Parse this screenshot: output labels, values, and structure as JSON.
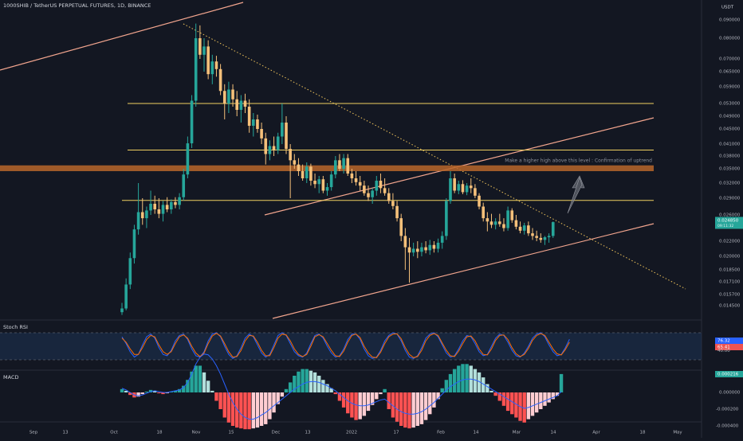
{
  "header": {
    "symbol_title": "1000SHIB / TetherUS PERPETUAL FUTURES, 1D, BINANCE",
    "currency": "USDT"
  },
  "chart_data": [
    {
      "type": "candlestick",
      "name": "price",
      "y_ticks": [
        "0.090000",
        "0.080000",
        "0.070000",
        "0.065000",
        "0.059000",
        "0.053000",
        "0.049000",
        "0.045000",
        "0.041000",
        "0.038000",
        "0.035000",
        "0.032000",
        "0.029000",
        "0.026000",
        "0.024850",
        "0.022000",
        "0.020000",
        "0.018500",
        "0.017100",
        "0.015700",
        "0.014500"
      ],
      "last_price": "0.024850",
      "last_price_sub": "09:11:32",
      "horizontal_levels": [
        0.053,
        0.0395,
        0.0286
      ],
      "resistance_zone": [
        0.0345,
        0.0358
      ],
      "annotation": "Make a higher high above this level : Confirmation of uptrend",
      "x_ticks": [
        "Sep",
        "13",
        "Oct",
        "18",
        "Nov",
        "15",
        "Dec",
        "13",
        "2022",
        "17",
        "Feb",
        "14",
        "Mar",
        "14",
        "Apr",
        "18",
        "May"
      ],
      "candles": [
        {
          "o": 0.0138,
          "h": 0.0148,
          "l": 0.0135,
          "c": 0.0142
        },
        {
          "o": 0.0142,
          "h": 0.0175,
          "l": 0.014,
          "c": 0.0168
        },
        {
          "o": 0.0168,
          "h": 0.0205,
          "l": 0.0163,
          "c": 0.0198
        },
        {
          "o": 0.0198,
          "h": 0.0245,
          "l": 0.0192,
          "c": 0.0238
        },
        {
          "o": 0.0238,
          "h": 0.032,
          "l": 0.023,
          "c": 0.0265
        },
        {
          "o": 0.0265,
          "h": 0.029,
          "l": 0.0245,
          "c": 0.0255
        },
        {
          "o": 0.0255,
          "h": 0.0275,
          "l": 0.024,
          "c": 0.0268
        },
        {
          "o": 0.0268,
          "h": 0.0305,
          "l": 0.026,
          "c": 0.028
        },
        {
          "o": 0.028,
          "h": 0.0295,
          "l": 0.0262,
          "c": 0.027
        },
        {
          "o": 0.027,
          "h": 0.029,
          "l": 0.0255,
          "c": 0.0262
        },
        {
          "o": 0.0262,
          "h": 0.0285,
          "l": 0.025,
          "c": 0.0278
        },
        {
          "o": 0.0278,
          "h": 0.0292,
          "l": 0.0265,
          "c": 0.027
        },
        {
          "o": 0.027,
          "h": 0.0288,
          "l": 0.0262,
          "c": 0.0283
        },
        {
          "o": 0.0283,
          "h": 0.0292,
          "l": 0.0272,
          "c": 0.0278
        },
        {
          "o": 0.0278,
          "h": 0.03,
          "l": 0.027,
          "c": 0.0292
        },
        {
          "o": 0.0292,
          "h": 0.035,
          "l": 0.0286,
          "c": 0.0338
        },
        {
          "o": 0.0338,
          "h": 0.043,
          "l": 0.033,
          "c": 0.0412
        },
        {
          "o": 0.0412,
          "h": 0.056,
          "l": 0.04,
          "c": 0.054
        },
        {
          "o": 0.054,
          "h": 0.088,
          "l": 0.052,
          "c": 0.08
        },
        {
          "o": 0.08,
          "h": 0.087,
          "l": 0.07,
          "c": 0.072
        },
        {
          "o": 0.072,
          "h": 0.08,
          "l": 0.065,
          "c": 0.076
        },
        {
          "o": 0.076,
          "h": 0.079,
          "l": 0.062,
          "c": 0.064
        },
        {
          "o": 0.064,
          "h": 0.072,
          "l": 0.06,
          "c": 0.069
        },
        {
          "o": 0.069,
          "h": 0.0715,
          "l": 0.063,
          "c": 0.066
        },
        {
          "o": 0.066,
          "h": 0.068,
          "l": 0.056,
          "c": 0.0575
        },
        {
          "o": 0.0575,
          "h": 0.06,
          "l": 0.048,
          "c": 0.053
        },
        {
          "o": 0.053,
          "h": 0.061,
          "l": 0.05,
          "c": 0.058
        },
        {
          "o": 0.058,
          "h": 0.06,
          "l": 0.052,
          "c": 0.0545
        },
        {
          "o": 0.0545,
          "h": 0.0575,
          "l": 0.049,
          "c": 0.051
        },
        {
          "o": 0.051,
          "h": 0.056,
          "l": 0.047,
          "c": 0.054
        },
        {
          "o": 0.054,
          "h": 0.0565,
          "l": 0.05,
          "c": 0.052
        },
        {
          "o": 0.052,
          "h": 0.0545,
          "l": 0.044,
          "c": 0.046
        },
        {
          "o": 0.046,
          "h": 0.05,
          "l": 0.043,
          "c": 0.048
        },
        {
          "o": 0.048,
          "h": 0.0495,
          "l": 0.044,
          "c": 0.045
        },
        {
          "o": 0.045,
          "h": 0.047,
          "l": 0.041,
          "c": 0.0425
        },
        {
          "o": 0.0425,
          "h": 0.044,
          "l": 0.036,
          "c": 0.0385
        },
        {
          "o": 0.0385,
          "h": 0.042,
          "l": 0.037,
          "c": 0.0405
        },
        {
          "o": 0.0405,
          "h": 0.043,
          "l": 0.038,
          "c": 0.0395
        },
        {
          "o": 0.0395,
          "h": 0.044,
          "l": 0.0385,
          "c": 0.043
        },
        {
          "o": 0.043,
          "h": 0.053,
          "l": 0.041,
          "c": 0.047
        },
        {
          "o": 0.047,
          "h": 0.049,
          "l": 0.0385,
          "c": 0.0398
        },
        {
          "o": 0.0398,
          "h": 0.041,
          "l": 0.029,
          "c": 0.037
        },
        {
          "o": 0.037,
          "h": 0.0385,
          "l": 0.035,
          "c": 0.036
        },
        {
          "o": 0.036,
          "h": 0.0375,
          "l": 0.0335,
          "c": 0.0345
        },
        {
          "o": 0.0345,
          "h": 0.036,
          "l": 0.0325,
          "c": 0.033
        },
        {
          "o": 0.033,
          "h": 0.0365,
          "l": 0.032,
          "c": 0.0355
        },
        {
          "o": 0.0355,
          "h": 0.0362,
          "l": 0.0315,
          "c": 0.0325
        },
        {
          "o": 0.0325,
          "h": 0.034,
          "l": 0.031,
          "c": 0.0318
        },
        {
          "o": 0.0318,
          "h": 0.0335,
          "l": 0.03,
          "c": 0.0328
        },
        {
          "o": 0.0328,
          "h": 0.0335,
          "l": 0.03,
          "c": 0.0305
        },
        {
          "o": 0.0305,
          "h": 0.032,
          "l": 0.0295,
          "c": 0.0312
        },
        {
          "o": 0.0312,
          "h": 0.0345,
          "l": 0.0305,
          "c": 0.0338
        },
        {
          "o": 0.0338,
          "h": 0.038,
          "l": 0.033,
          "c": 0.037
        },
        {
          "o": 0.037,
          "h": 0.0385,
          "l": 0.0345,
          "c": 0.035
        },
        {
          "o": 0.035,
          "h": 0.0385,
          "l": 0.034,
          "c": 0.0375
        },
        {
          "o": 0.0375,
          "h": 0.0385,
          "l": 0.0335,
          "c": 0.034
        },
        {
          "o": 0.034,
          "h": 0.035,
          "l": 0.032,
          "c": 0.033
        },
        {
          "o": 0.033,
          "h": 0.0345,
          "l": 0.0315,
          "c": 0.0322
        },
        {
          "o": 0.0322,
          "h": 0.0335,
          "l": 0.0305,
          "c": 0.0315
        },
        {
          "o": 0.0315,
          "h": 0.0325,
          "l": 0.0295,
          "c": 0.03
        },
        {
          "o": 0.03,
          "h": 0.0315,
          "l": 0.0285,
          "c": 0.0292
        },
        {
          "o": 0.0292,
          "h": 0.031,
          "l": 0.028,
          "c": 0.0305
        },
        {
          "o": 0.0305,
          "h": 0.0335,
          "l": 0.0295,
          "c": 0.0325
        },
        {
          "o": 0.0325,
          "h": 0.034,
          "l": 0.03,
          "c": 0.031
        },
        {
          "o": 0.031,
          "h": 0.033,
          "l": 0.0295,
          "c": 0.03
        },
        {
          "o": 0.03,
          "h": 0.031,
          "l": 0.028,
          "c": 0.0285
        },
        {
          "o": 0.0285,
          "h": 0.03,
          "l": 0.027,
          "c": 0.0276
        },
        {
          "o": 0.0276,
          "h": 0.0285,
          "l": 0.025,
          "c": 0.0255
        },
        {
          "o": 0.0255,
          "h": 0.0262,
          "l": 0.022,
          "c": 0.0228
        },
        {
          "o": 0.0228,
          "h": 0.024,
          "l": 0.0185,
          "c": 0.0212
        },
        {
          "o": 0.0212,
          "h": 0.0225,
          "l": 0.017,
          "c": 0.0205
        },
        {
          "o": 0.0205,
          "h": 0.0218,
          "l": 0.02,
          "c": 0.021
        },
        {
          "o": 0.021,
          "h": 0.022,
          "l": 0.0198,
          "c": 0.0206
        },
        {
          "o": 0.0206,
          "h": 0.0218,
          "l": 0.02,
          "c": 0.0212
        },
        {
          "o": 0.0212,
          "h": 0.022,
          "l": 0.0204,
          "c": 0.0208
        },
        {
          "o": 0.0208,
          "h": 0.0222,
          "l": 0.0202,
          "c": 0.0215
        },
        {
          "o": 0.0215,
          "h": 0.022,
          "l": 0.0205,
          "c": 0.021
        },
        {
          "o": 0.021,
          "h": 0.0224,
          "l": 0.0205,
          "c": 0.0218
        },
        {
          "o": 0.0218,
          "h": 0.0235,
          "l": 0.021,
          "c": 0.0228
        },
        {
          "o": 0.0228,
          "h": 0.029,
          "l": 0.0222,
          "c": 0.0285
        },
        {
          "o": 0.0285,
          "h": 0.0345,
          "l": 0.028,
          "c": 0.033
        },
        {
          "o": 0.033,
          "h": 0.034,
          "l": 0.03,
          "c": 0.0305
        },
        {
          "o": 0.0305,
          "h": 0.0325,
          "l": 0.0298,
          "c": 0.0318
        },
        {
          "o": 0.0318,
          "h": 0.0326,
          "l": 0.0298,
          "c": 0.0302
        },
        {
          "o": 0.0302,
          "h": 0.032,
          "l": 0.0296,
          "c": 0.0315
        },
        {
          "o": 0.0315,
          "h": 0.033,
          "l": 0.03,
          "c": 0.031
        },
        {
          "o": 0.031,
          "h": 0.0318,
          "l": 0.029,
          "c": 0.0295
        },
        {
          "o": 0.0295,
          "h": 0.03,
          "l": 0.027,
          "c": 0.0275
        },
        {
          "o": 0.0275,
          "h": 0.0282,
          "l": 0.025,
          "c": 0.0255
        },
        {
          "o": 0.0255,
          "h": 0.0265,
          "l": 0.0235,
          "c": 0.025
        },
        {
          "o": 0.025,
          "h": 0.0262,
          "l": 0.024,
          "c": 0.0245
        },
        {
          "o": 0.0245,
          "h": 0.0255,
          "l": 0.0238,
          "c": 0.025
        },
        {
          "o": 0.025,
          "h": 0.0262,
          "l": 0.0242,
          "c": 0.0246
        },
        {
          "o": 0.0246,
          "h": 0.0255,
          "l": 0.0235,
          "c": 0.024
        },
        {
          "o": 0.024,
          "h": 0.0275,
          "l": 0.0236,
          "c": 0.0268
        },
        {
          "o": 0.0268,
          "h": 0.0272,
          "l": 0.0248,
          "c": 0.0252
        },
        {
          "o": 0.0252,
          "h": 0.026,
          "l": 0.0238,
          "c": 0.0242
        },
        {
          "o": 0.0242,
          "h": 0.025,
          "l": 0.0232,
          "c": 0.0236
        },
        {
          "o": 0.0236,
          "h": 0.0248,
          "l": 0.023,
          "c": 0.0244
        },
        {
          "o": 0.0244,
          "h": 0.025,
          "l": 0.0228,
          "c": 0.0232
        },
        {
          "o": 0.0232,
          "h": 0.024,
          "l": 0.0222,
          "c": 0.0228
        },
        {
          "o": 0.0228,
          "h": 0.0236,
          "l": 0.022,
          "c": 0.0225
        },
        {
          "o": 0.0225,
          "h": 0.0232,
          "l": 0.0218,
          "c": 0.0222
        },
        {
          "o": 0.0222,
          "h": 0.0228,
          "l": 0.0215,
          "c": 0.0226
        },
        {
          "o": 0.0226,
          "h": 0.0232,
          "l": 0.0218,
          "c": 0.0228
        },
        {
          "o": 0.0228,
          "h": 0.025,
          "l": 0.0225,
          "c": 0.0249
        }
      ]
    },
    {
      "type": "line",
      "name": "Stoch RSI",
      "label": "Stoch RSI",
      "values": [
        "76.32",
        "65.41"
      ],
      "y_ticks": [
        "40.00"
      ],
      "band": [
        20,
        80
      ],
      "k_values": [
        85,
        60,
        30,
        10,
        20,
        55,
        85,
        95,
        80,
        45,
        20,
        15,
        35,
        70,
        90,
        95,
        75,
        40,
        15,
        10,
        30,
        70,
        95,
        100,
        85,
        50,
        20,
        5,
        15,
        45,
        80,
        95,
        85,
        55,
        25,
        10,
        20,
        55,
        90,
        100,
        90,
        60,
        30,
        15,
        10,
        25,
        60,
        90,
        95,
        80,
        50,
        25,
        10,
        15,
        40,
        75,
        95,
        95,
        75,
        40,
        15,
        5,
        10,
        35,
        70,
        90,
        100,
        95,
        70,
        35,
        10,
        5,
        15,
        45,
        80,
        95,
        100,
        85,
        55,
        25,
        10,
        15,
        40,
        70,
        90,
        85,
        60,
        30,
        15,
        20,
        50,
        80,
        95,
        90,
        65,
        35,
        15,
        10,
        25,
        50,
        80,
        95,
        100,
        85,
        55,
        30,
        15,
        20,
        45,
        76
      ],
      "d_values": [
        80,
        65,
        40,
        20,
        20,
        45,
        75,
        90,
        85,
        55,
        30,
        20,
        30,
        60,
        85,
        92,
        80,
        50,
        25,
        12,
        25,
        60,
        88,
        98,
        88,
        60,
        30,
        10,
        12,
        35,
        70,
        90,
        88,
        65,
        35,
        15,
        15,
        45,
        80,
        95,
        92,
        70,
        40,
        20,
        12,
        20,
        50,
        85,
        93,
        85,
        60,
        35,
        15,
        12,
        32,
        65,
        90,
        95,
        82,
        50,
        25,
        10,
        8,
        28,
        60,
        85,
        95,
        96,
        78,
        45,
        20,
        8,
        12,
        35,
        70,
        90,
        97,
        90,
        62,
        35,
        15,
        12,
        32,
        60,
        85,
        88,
        70,
        40,
        20,
        18,
        40,
        72,
        90,
        92,
        75,
        45,
        22,
        12,
        20,
        42,
        72,
        90,
        97,
        90,
        65,
        40,
        22,
        18,
        38,
        65
      ]
    },
    {
      "type": "bar",
      "name": "MACD",
      "label": "MACD",
      "values": [
        "0.000216"
      ],
      "y_ticks": [
        "0.000000",
        "-0.000200",
        "-0.000400"
      ],
      "histogram": [
        4e-05,
        2e-05,
        -3e-05,
        -6e-05,
        -5e-05,
        -2e-05,
        1e-05,
        3e-05,
        2e-05,
        -1e-05,
        -2e-05,
        -1e-05,
        1e-05,
        2e-05,
        4e-05,
        8e-05,
        0.00015,
        0.00025,
        0.00032,
        0.00032,
        0.00024,
        0.00014,
        2e-05,
        -0.0001,
        -0.0002,
        -0.0003,
        -0.00036,
        -0.0004,
        -0.00042,
        -0.00043,
        -0.00044,
        -0.00044,
        -0.00043,
        -0.00042,
        -0.0004,
        -0.00038,
        -0.00032,
        -0.00024,
        -0.00014,
        -5e-05,
        4e-05,
        0.00012,
        0.0002,
        0.00025,
        0.00028,
        0.00028,
        0.00026,
        0.00024,
        0.0002,
        0.00015,
        0.0001,
        5e-05,
        -2e-05,
        -0.0001,
        -0.00018,
        -0.00025,
        -0.0003,
        -0.00033,
        -0.00032,
        -0.00028,
        -0.00022,
        -0.00015,
        -8e-05,
        -2e-05,
        4e-05,
        -0.0002,
        -0.0003,
        -0.00035,
        -0.0004,
        -0.00042,
        -0.00043,
        -0.00042,
        -0.0004,
        -0.00038,
        -0.00033,
        -0.00026,
        -0.00018,
        -8e-05,
        5e-05,
        0.00015,
        0.00022,
        0.00028,
        0.00032,
        0.00034,
        0.00034,
        0.00032,
        0.00028,
        0.00024,
        0.00018,
        0.0001,
        2e-05,
        -4e-05,
        -0.0001,
        -0.00016,
        -0.00022,
        -0.00026,
        -0.0003,
        -0.00034,
        -0.00036,
        -0.00032,
        -0.00028,
        -0.00024,
        -0.0002,
        -0.00016,
        -0.00012,
        -8e-05,
        -4e-05,
        0.00022
      ],
      "macd_line": [
        5e-05,
        3e-05,
        0.0,
        -3e-05,
        -4e-05,
        -3e-05,
        -1e-05,
        1e-05,
        2e-05,
        1e-05,
        0.0,
        0.0,
        1e-05,
        2e-05,
        3e-05,
        6e-05,
        0.00012,
        0.00022,
        0.00034,
        0.00042,
        0.00046,
        0.00045,
        0.0004,
        0.00032,
        0.00022,
        0.0001,
        -2e-05,
        -0.00012,
        -0.0002,
        -0.00026,
        -0.0003,
        -0.00032,
        -0.00032,
        -0.0003,
        -0.00027,
        -0.00024,
        -0.0002,
        -0.00016,
        -0.00012,
        -8e-05,
        -4e-05,
        0.0,
        4e-05,
        7e-05,
        0.0001,
        0.00012,
        0.00013,
        0.00013,
        0.00012,
        0.0001,
        8e-05,
        5e-05,
        2e-05,
        -2e-05,
        -6e-05,
        -0.0001,
        -0.00013,
        -0.00015,
        -0.00016,
        -0.00016,
        -0.00015,
        -0.00013,
        -0.00011,
        -9e-05,
        -8e-05,
        -0.00012,
        -0.00016,
        -0.0002,
        -0.00023,
        -0.00025,
        -0.00026,
        -0.00026,
        -0.00025,
        -0.00023,
        -0.0002,
        -0.00016,
        -0.00012,
        -7e-05,
        -2e-05,
        3e-05,
        7e-05,
        0.0001,
        0.00013,
        0.00015,
        0.00016,
        0.00016,
        0.00015,
        0.00013,
        0.0001,
        7e-05,
        4e-05,
        1e-05,
        -2e-05,
        -5e-05,
        -8e-05,
        -0.00011,
        -0.00014,
        -0.00017,
        -0.00019,
        -0.00018,
        -0.00016,
        -0.00014,
        -0.00012,
        -0.0001,
        -8e-05,
        -6e-05,
        -4e-05,
        1e-05
      ]
    }
  ]
}
